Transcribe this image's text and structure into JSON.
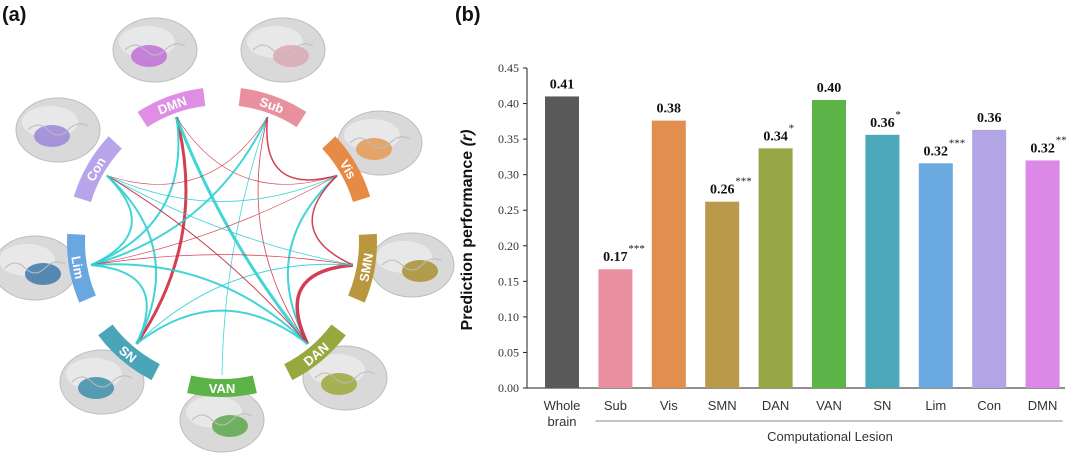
{
  "panels": {
    "a": "(a)",
    "b": "(b)"
  },
  "colors": {
    "positive": "#2fcfd2",
    "negative": "#cf2a3e",
    "axis": "#222222"
  },
  "diagram": {
    "networks": [
      {
        "id": "DMN",
        "color": "#df8ee6",
        "brain_patch": "#c070d6"
      },
      {
        "id": "Sub",
        "color": "#e8909e",
        "brain_patch": "#d9a8b4"
      },
      {
        "id": "Vis",
        "color": "#e68a45",
        "brain_patch": "#e59955"
      },
      {
        "id": "SMN",
        "color": "#b8973f",
        "brain_patch": "#a89030"
      },
      {
        "id": "DAN",
        "color": "#98a83f",
        "brain_patch": "#9aa838"
      },
      {
        "id": "VAN",
        "color": "#5cb347",
        "brain_patch": "#5ca84a"
      },
      {
        "id": "SN",
        "color": "#4aa5b8",
        "brain_patch": "#3c8ea8"
      },
      {
        "id": "Lim",
        "color": "#6aa6e0",
        "brain_patch": "#3e78a8"
      },
      {
        "id": "Con",
        "color": "#b7a4ea",
        "brain_patch": "#9a86d8"
      }
    ],
    "edges": [
      {
        "from": "DMN",
        "to": "SN",
        "sign": "negative",
        "weight": 3
      },
      {
        "from": "DMN",
        "to": "DAN",
        "sign": "positive",
        "weight": 3
      },
      {
        "from": "DMN",
        "to": "Lim",
        "sign": "positive",
        "weight": 2
      },
      {
        "from": "DMN",
        "to": "Vis",
        "sign": "negative",
        "weight": 0.6
      },
      {
        "from": "Sub",
        "to": "Vis",
        "sign": "negative",
        "weight": 1.5
      },
      {
        "from": "Sub",
        "to": "Lim",
        "sign": "positive",
        "weight": 2
      },
      {
        "from": "Sub",
        "to": "VAN",
        "sign": "positive",
        "weight": 0.8
      },
      {
        "from": "Sub",
        "to": "DAN",
        "sign": "negative",
        "weight": 0.8
      },
      {
        "from": "Sub",
        "to": "Con",
        "sign": "negative",
        "weight": 0.6
      },
      {
        "from": "Vis",
        "to": "DAN",
        "sign": "positive",
        "weight": 2
      },
      {
        "from": "Vis",
        "to": "SMN",
        "sign": "negative",
        "weight": 1.5
      },
      {
        "from": "Vis",
        "to": "Con",
        "sign": "positive",
        "weight": 0.8
      },
      {
        "from": "Vis",
        "to": "Lim",
        "sign": "negative",
        "weight": 0.6
      },
      {
        "from": "SMN",
        "to": "DAN",
        "sign": "negative",
        "weight": 3.5
      },
      {
        "from": "SMN",
        "to": "Lim",
        "sign": "negative",
        "weight": 0.8
      },
      {
        "from": "SMN",
        "to": "Con",
        "sign": "positive",
        "weight": 0.8
      },
      {
        "from": "SMN",
        "to": "SN",
        "sign": "positive",
        "weight": 1
      },
      {
        "from": "DAN",
        "to": "Lim",
        "sign": "positive",
        "weight": 2
      },
      {
        "from": "DAN",
        "to": "Con",
        "sign": "negative",
        "weight": 1
      },
      {
        "from": "DAN",
        "to": "SN",
        "sign": "positive",
        "weight": 2
      },
      {
        "from": "Con",
        "to": "SN",
        "sign": "positive",
        "weight": 2
      },
      {
        "from": "Con",
        "to": "Lim",
        "sign": "positive",
        "weight": 2
      },
      {
        "from": "Lim",
        "to": "SN",
        "sign": "positive",
        "weight": 2
      }
    ]
  },
  "chart_data": {
    "type": "bar",
    "ylabel": "Prediction performance",
    "ylabel_symbol": "(r)",
    "ylim": [
      0,
      0.45
    ],
    "yticks": [
      "0.00",
      "0.05",
      "0.10",
      "0.15",
      "0.20",
      "0.25",
      "0.30",
      "0.35",
      "0.40",
      "0.45"
    ],
    "group_label": "Computational Lesion",
    "grid": false,
    "categories": [
      "Whole brain",
      "Sub",
      "Vis",
      "SMN",
      "DAN",
      "VAN",
      "SN",
      "Lim",
      "Con",
      "DMN"
    ],
    "values": [
      0.41,
      0.167,
      0.376,
      0.262,
      0.337,
      0.405,
      0.356,
      0.316,
      0.363,
      0.32
    ],
    "labels": [
      "0.41",
      "0.17",
      "0.38",
      "0.26",
      "0.34",
      "0.40",
      "0.36",
      "0.32",
      "0.36",
      "0.32"
    ],
    "significance": [
      "",
      "***",
      "",
      "***",
      "*",
      "",
      "*",
      "***",
      "",
      "**"
    ],
    "colors": [
      "#595959",
      "#e8909f",
      "#e28e4e",
      "#b89a4a",
      "#97a746",
      "#5cb347",
      "#4ba8b8",
      "#6aaae0",
      "#b1a5e6",
      "#dc88e6"
    ]
  }
}
